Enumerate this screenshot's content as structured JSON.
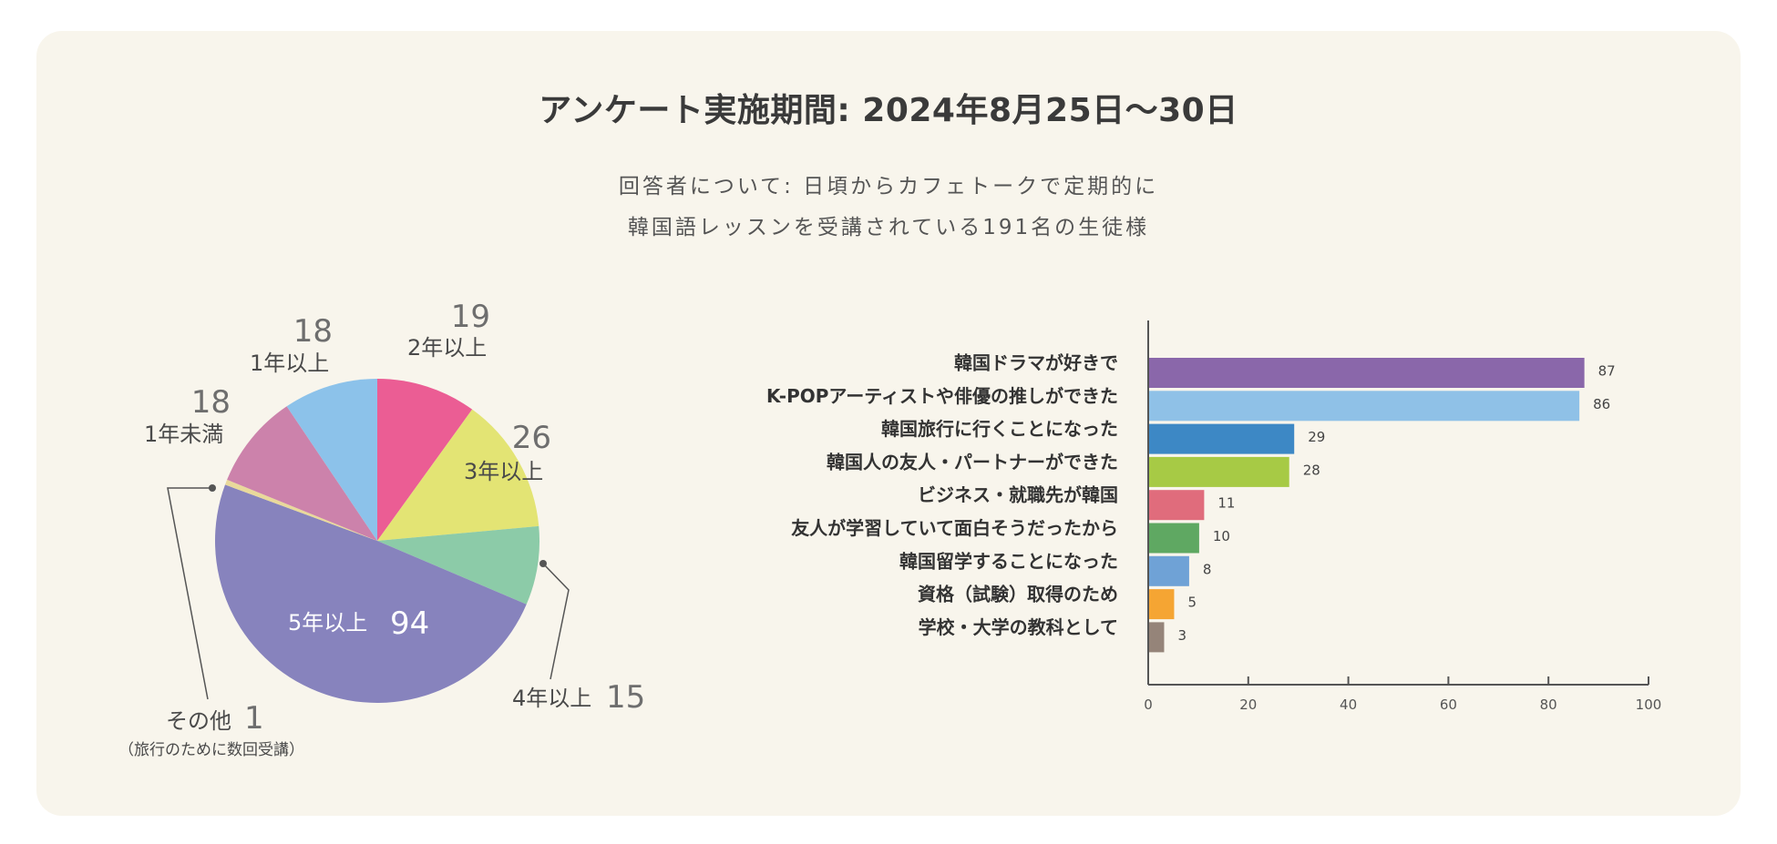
{
  "header": {
    "title": "アンケート実施期間: 2024年8月25日〜30日",
    "subtitle_line1": "回答者について: 日頃からカフェトークで定期的に",
    "subtitle_line2": "韓国語レッスンを受講されている191名の生徒様"
  },
  "chart_data": [
    {
      "type": "pie",
      "title": "",
      "slices": [
        {
          "label": "5年以上",
          "value": 94,
          "color": "#8783bd"
        },
        {
          "label": "4年以上",
          "value": 15,
          "color": "#8ccba8"
        },
        {
          "label": "3年以上",
          "value": 26,
          "color": "#e3e474"
        },
        {
          "label": "2年以上",
          "value": 19,
          "color": "#eb5d94"
        },
        {
          "label": "1年以上",
          "value": 18,
          "color": "#8cc2ea"
        },
        {
          "label": "1年未満",
          "value": 18,
          "color": "#cc82ab"
        },
        {
          "label": "その他",
          "value": 1,
          "color": "#e9d99b",
          "note": "（旅行のために数回受講）"
        }
      ]
    },
    {
      "type": "bar",
      "orientation": "horizontal",
      "title": "",
      "xlabel": "",
      "ylabel": "",
      "xlim": [
        0,
        100
      ],
      "xticks": [
        0,
        20,
        40,
        60,
        80,
        100
      ],
      "categories": [
        "韓国ドラマが好きで",
        "K-POPアーティストや俳優の推しができた",
        "韓国旅行に行くことになった",
        "韓国人の友人・パートナーができた",
        "ビジネス・就職先が韓国",
        "友人が学習していて面白そうだったから",
        "韓国留学することになった",
        "資格（試験）取得のため",
        "学校・大学の教科として"
      ],
      "values": [
        87,
        86,
        29,
        28,
        11,
        10,
        8,
        5,
        3
      ],
      "colors": [
        "#8a67aa",
        "#8fc1e7",
        "#3d88c5",
        "#a7ca45",
        "#e06c7c",
        "#5fa862",
        "#6fa2d6",
        "#f5a533",
        "#958479"
      ]
    }
  ]
}
